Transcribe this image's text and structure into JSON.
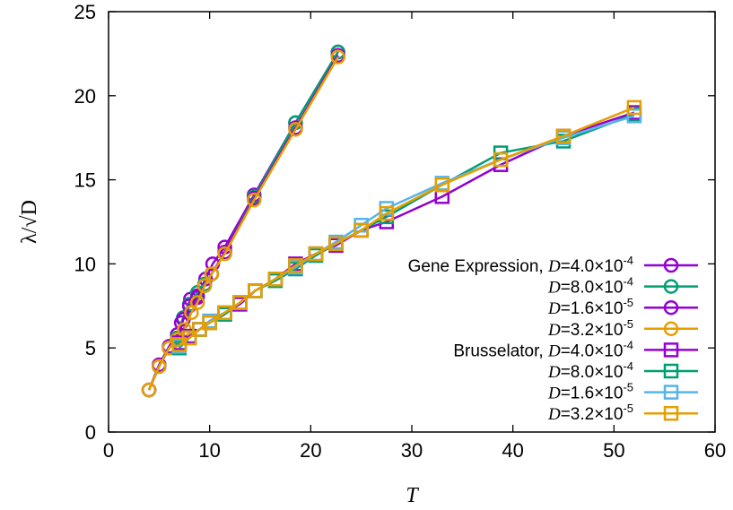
{
  "chart_data": {
    "type": "line",
    "xlabel": "T",
    "ylabel": "λ/√D",
    "xlim": [
      0,
      60
    ],
    "ylim": [
      0,
      25
    ],
    "x_ticks": [
      "0",
      "10",
      "20",
      "30",
      "40",
      "50",
      "60"
    ],
    "y_ticks": [
      "0",
      "5",
      "10",
      "15",
      "20",
      "25"
    ],
    "grid": false,
    "legend_position": "right",
    "colors": {
      "purple": "#9400d3",
      "green": "#009e73",
      "lightblue": "#56b4e9",
      "orange": "#e69f00"
    },
    "series": [
      {
        "name": "Gene Expression, D=4.0×10-4",
        "group_label": "Gene Expression, ",
        "d_label": "D",
        "d_value": "=4.0×10",
        "d_exp": "-4",
        "marker": "circle",
        "color": "#9400d3",
        "x": [
          4.0,
          5.0,
          6.0,
          6.8,
          7.2,
          8.1,
          8.8,
          9.6,
          10.3,
          11.5,
          14.4,
          18.5,
          22.7
        ],
        "y": [
          2.5,
          4.0,
          5.1,
          5.8,
          6.5,
          7.9,
          8.1,
          9.1,
          10.0,
          11.0,
          14.1,
          18.4,
          22.6
        ]
      },
      {
        "name": "D=8.0×10-4",
        "group_label": "",
        "d_label": "D",
        "d_value": "=8.0×10",
        "d_exp": "-4",
        "marker": "circle",
        "color": "#009e73",
        "x": [
          4.0,
          5.0,
          6.0,
          6.8,
          7.4,
          8.0,
          8.8,
          9.5,
          10.2,
          11.5,
          14.4,
          18.5,
          22.7
        ],
        "y": [
          2.5,
          3.9,
          5.0,
          5.6,
          6.8,
          7.6,
          8.3,
          8.8,
          9.4,
          10.7,
          14.0,
          18.4,
          22.6
        ]
      },
      {
        "name": "D=1.6×10-5",
        "group_label": "",
        "d_label": "D",
        "d_value": "=1.6×10",
        "d_exp": "-5",
        "marker": "circle",
        "color": "#9400d3",
        "x": [
          4.0,
          5.0,
          6.0,
          6.8,
          7.4,
          8.0,
          8.8,
          9.5,
          10.2,
          11.5,
          14.4,
          18.5,
          22.7
        ],
        "y": [
          2.5,
          3.9,
          5.0,
          5.5,
          6.7,
          7.5,
          8.0,
          8.7,
          9.4,
          10.7,
          13.9,
          18.1,
          22.4
        ]
      },
      {
        "name": "D=3.2×10-5",
        "group_label": "",
        "d_label": "D",
        "d_value": "=3.2×10",
        "d_exp": "-5",
        "marker": "circle",
        "color": "#e69f00",
        "x": [
          4.0,
          5.0,
          6.0,
          6.8,
          7.5,
          8.2,
          8.8,
          9.5,
          10.2,
          11.5,
          14.4,
          18.5,
          22.7
        ],
        "y": [
          2.5,
          3.9,
          5.0,
          5.5,
          6.1,
          7.1,
          7.7,
          8.7,
          9.4,
          10.6,
          13.8,
          18.0,
          22.3
        ]
      },
      {
        "name": "Brusselator, D=4.0×10-4",
        "group_label": "Brusselator, ",
        "d_label": "D",
        "d_value": "=4.0×10",
        "d_exp": "-4",
        "marker": "square",
        "color": "#9400d3",
        "x": [
          7.0,
          8.0,
          9.0,
          10.0,
          11.5,
          13.0,
          14.5,
          16.5,
          18.5,
          20.5,
          22.5,
          25.0,
          27.5,
          33.0,
          38.8,
          45.0,
          52.0
        ],
        "y": [
          5.3,
          5.7,
          6.1,
          6.6,
          7.1,
          7.6,
          8.4,
          9.1,
          10.0,
          10.6,
          11.1,
          12.0,
          12.5,
          14.0,
          15.9,
          17.6,
          19.0
        ]
      },
      {
        "name": "D=8.0×10-4",
        "group_label": "",
        "d_label": "D",
        "d_value": "=8.0×10",
        "d_exp": "-4",
        "marker": "square",
        "color": "#009e73",
        "x": [
          7.0,
          8.0,
          9.0,
          10.0,
          11.5,
          13.0,
          14.5,
          16.5,
          18.5,
          20.5,
          22.5,
          25.0,
          27.5,
          33.0,
          38.8,
          45.0,
          52.0
        ],
        "y": [
          5.0,
          5.6,
          6.1,
          6.5,
          7.0,
          7.7,
          8.4,
          9.0,
          9.7,
          10.5,
          11.2,
          12.0,
          12.8,
          14.7,
          16.6,
          17.3,
          18.9
        ]
      },
      {
        "name": "D=1.6×10-5",
        "group_label": "",
        "d_label": "D",
        "d_value": "=1.6×10",
        "d_exp": "-5",
        "marker": "square",
        "color": "#56b4e9",
        "x": [
          7.0,
          8.0,
          9.0,
          10.0,
          11.5,
          13.0,
          14.5,
          16.5,
          18.5,
          20.5,
          22.5,
          25.0,
          27.5,
          33.0,
          38.8,
          45.0,
          52.0
        ],
        "y": [
          5.1,
          5.6,
          6.1,
          6.6,
          7.1,
          7.7,
          8.4,
          9.1,
          9.8,
          10.6,
          11.3,
          12.3,
          13.3,
          14.8,
          16.2,
          17.5,
          18.8
        ]
      },
      {
        "name": "D=3.2×10-5",
        "group_label": "",
        "d_label": "D",
        "d_value": "=3.2×10",
        "d_exp": "-5",
        "marker": "square",
        "color": "#e69f00",
        "x": [
          7.0,
          8.0,
          9.0,
          10.0,
          11.5,
          13.0,
          14.5,
          16.5,
          18.5,
          20.5,
          22.5,
          25.0,
          27.5,
          33.0,
          38.8,
          45.0,
          52.0
        ],
        "y": [
          5.2,
          5.6,
          6.1,
          6.5,
          7.1,
          7.7,
          8.4,
          9.1,
          9.9,
          10.6,
          11.2,
          12.0,
          13.0,
          14.7,
          16.2,
          17.6,
          19.3
        ]
      }
    ]
  }
}
